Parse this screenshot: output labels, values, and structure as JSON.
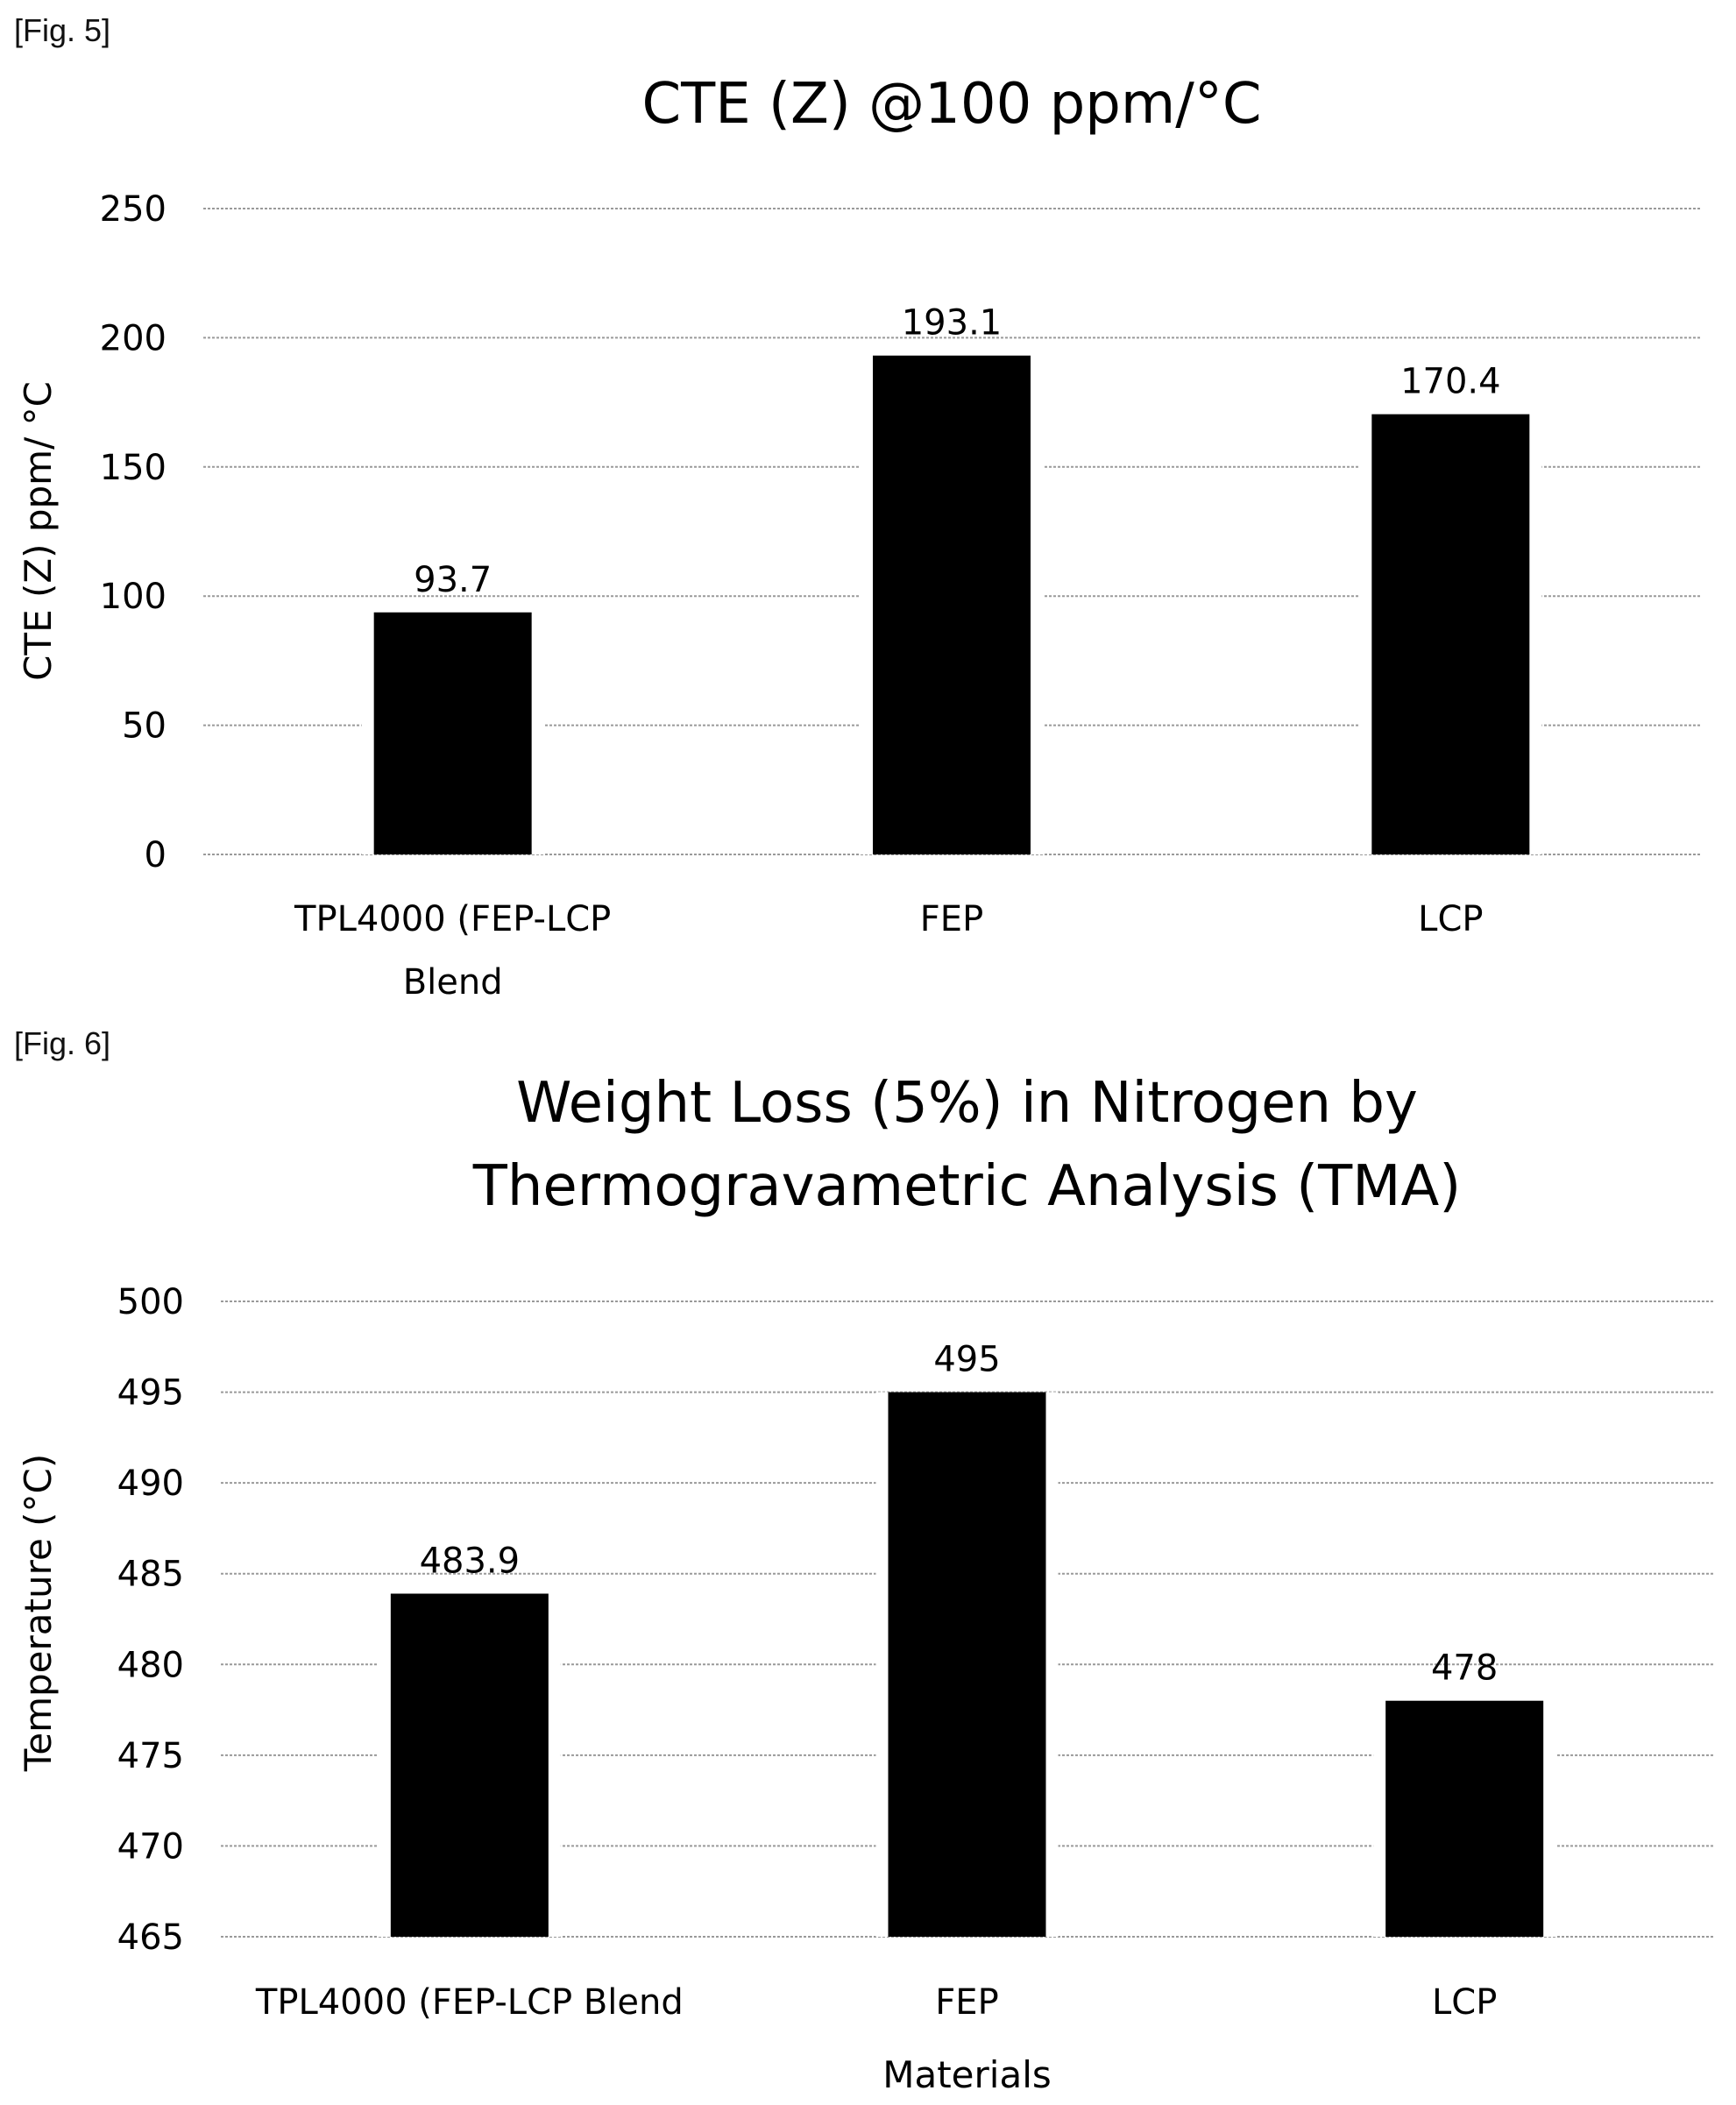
{
  "figures": [
    {
      "label": "[Fig. 5]"
    },
    {
      "label": "[Fig. 6]"
    }
  ],
  "chart_data": [
    {
      "type": "bar",
      "title": "CTE (Z) @100  ppm/°C",
      "title_lines": [
        "CTE (Z) @100  ppm/°C"
      ],
      "categories": [
        "TPL4000 (FEP-LCP Blend",
        "FEP",
        "LCP"
      ],
      "category_lines": [
        [
          "TPL4000 (FEP-LCP",
          "Blend"
        ],
        [
          "FEP"
        ],
        [
          "LCP"
        ]
      ],
      "values": [
        93.7,
        193.1,
        170.4
      ],
      "data_labels": [
        "93.7",
        "193.1",
        "170.4"
      ],
      "xlabel": "",
      "ylabel": "CTE (Z) ppm/ °C",
      "ylim": [
        0,
        250
      ],
      "yticks": [
        0,
        50,
        100,
        150,
        200,
        250
      ],
      "grid": true,
      "bar_color": "#000000",
      "grid_color": "#9a9a9a"
    },
    {
      "type": "bar",
      "title": "Weight Loss (5%) in Nitrogen by Thermogravametric Analysis (TMA)",
      "title_lines": [
        "Weight Loss (5%) in Nitrogen by",
        "Thermogravametric Analysis (TMA)"
      ],
      "categories": [
        "TPL4000 (FEP-LCP Blend",
        "FEP",
        "LCP"
      ],
      "category_lines": [
        [
          "TPL4000 (FEP-LCP Blend"
        ],
        [
          "FEP"
        ],
        [
          "LCP"
        ]
      ],
      "values": [
        483.9,
        495,
        478
      ],
      "data_labels": [
        "483.9",
        "495",
        "478"
      ],
      "xlabel": "Materials",
      "ylabel": "Temperature (°C)",
      "ylim": [
        465,
        500
      ],
      "yticks": [
        465,
        470,
        475,
        480,
        485,
        490,
        495,
        500
      ],
      "grid": true,
      "bar_color": "#000000",
      "grid_color": "#9a9a9a"
    }
  ]
}
